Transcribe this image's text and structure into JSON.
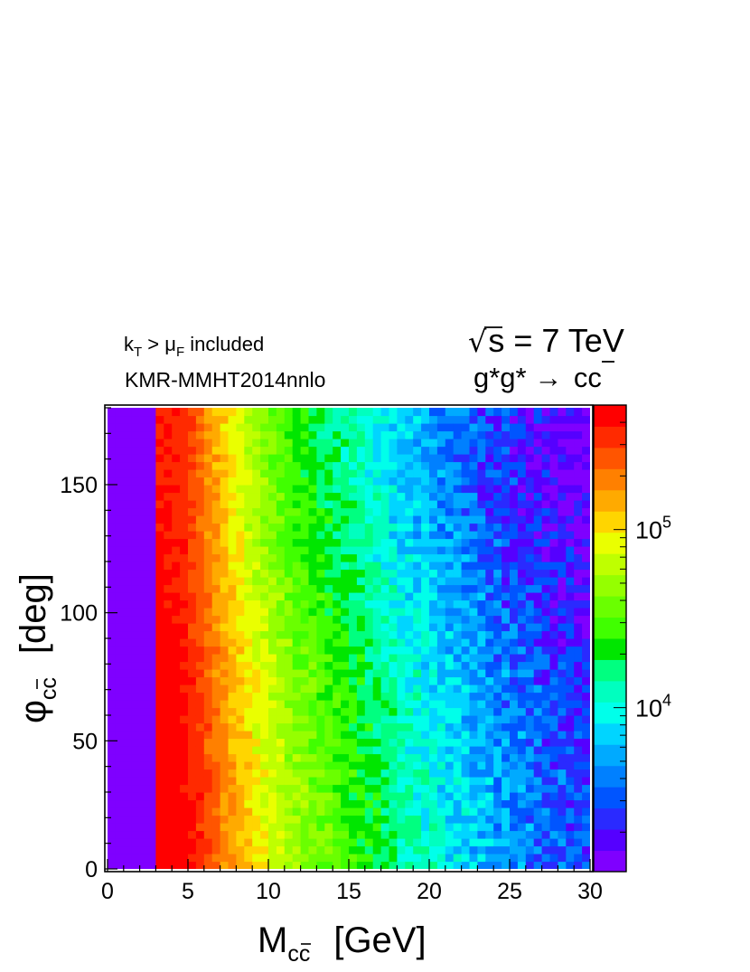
{
  "chart_data": {
    "type": "heatmap",
    "title": "",
    "annotations": {
      "energy": "√s = 7 TeV",
      "energy_radical": "√",
      "energy_rest": "s = 7 TeV",
      "process_prefix": "g*g* →",
      "process_base": "c",
      "process_bar": "c",
      "line1_k": "k",
      "line1_ksub": "T",
      "line1_gt": " > ",
      "line1_mu": "μ",
      "line1_musub": "F",
      "line1_rest": " included",
      "line2": "KMR-MMHT2014nnlo"
    },
    "xlabel": {
      "main": "M",
      "sub_c1": "c",
      "sub_c2": "c",
      "unit": "[GeV]"
    },
    "ylabel": {
      "main": "φ",
      "sub_c1": "c",
      "sub_c2": "c",
      "unit": "[deg]"
    },
    "xlim": [
      0,
      30
    ],
    "ylim": [
      0,
      180
    ],
    "x_ticks": [
      "0",
      "5",
      "10",
      "15",
      "20",
      "25",
      "30"
    ],
    "y_ticks": [
      "0",
      "50",
      "100",
      "150"
    ],
    "z_scale": "log",
    "zlim": [
      1200,
      500000
    ],
    "colorbar_labels": [
      {
        "base": "10",
        "exp": "5",
        "value": 100000
      },
      {
        "base": "10",
        "exp": "4",
        "value": 10000
      }
    ],
    "palette": [
      "#7f00ff",
      "#5500ff",
      "#2a2aff",
      "#0055ff",
      "#0080ff",
      "#00aaff",
      "#00d5ff",
      "#00ffea",
      "#00ffbf",
      "#00ff80",
      "#00e600",
      "#40ff00",
      "#6aff00",
      "#95ff00",
      "#bfff00",
      "#eaff00",
      "#ffd500",
      "#ffaa00",
      "#ff8000",
      "#ff5500",
      "#ff2a00",
      "#ff0000"
    ],
    "grid": false,
    "legend": "colorbar-right",
    "description_points": [
      {
        "x": 1.5,
        "z": 1200
      },
      {
        "x": 3.25,
        "z": 450000
      },
      {
        "x": 4.5,
        "z": 420000
      },
      {
        "x": 6,
        "z": 250000
      },
      {
        "x": 8,
        "z": 110000
      },
      {
        "x": 10,
        "z": 60000
      },
      {
        "x": 12,
        "z": 35000
      },
      {
        "x": 15,
        "z": 20000
      },
      {
        "x": 18,
        "z": 11000
      },
      {
        "x": 21,
        "z": 6500
      },
      {
        "x": 24,
        "z": 4000
      },
      {
        "x": 27,
        "z": 2700
      },
      {
        "x": 30,
        "z": 2000
      }
    ]
  }
}
